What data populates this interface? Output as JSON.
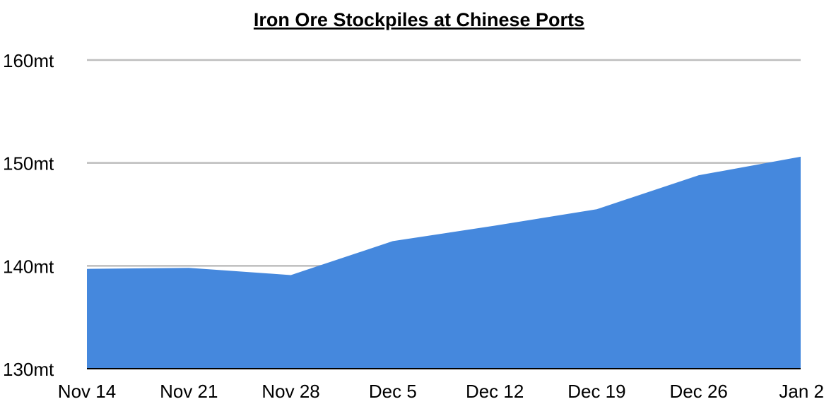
{
  "chart_data": {
    "type": "area",
    "title": "Iron Ore Stockpiles at Chinese Ports",
    "xlabel": "",
    "ylabel": "",
    "categories": [
      "Nov 14",
      "Nov 21",
      "Nov 28",
      "Dec 5",
      "Dec 12",
      "Dec 19",
      "Dec 26",
      "Jan 2"
    ],
    "y_tick_labels": [
      "130mt",
      "140mt",
      "150mt",
      "160mt"
    ],
    "y_ticks": [
      130,
      140,
      150,
      160
    ],
    "ylim": [
      130,
      160
    ],
    "grid": true,
    "legend": "none",
    "series": [
      {
        "values": [
          139.7,
          139.8,
          139.1,
          142.4,
          143.9,
          145.5,
          148.8,
          150.6
        ],
        "color": "#4588DD"
      }
    ],
    "colors": {
      "fill": "#4588DD",
      "grid": "#BDBDBD",
      "baseline": "#000000",
      "text": "#000000"
    }
  }
}
